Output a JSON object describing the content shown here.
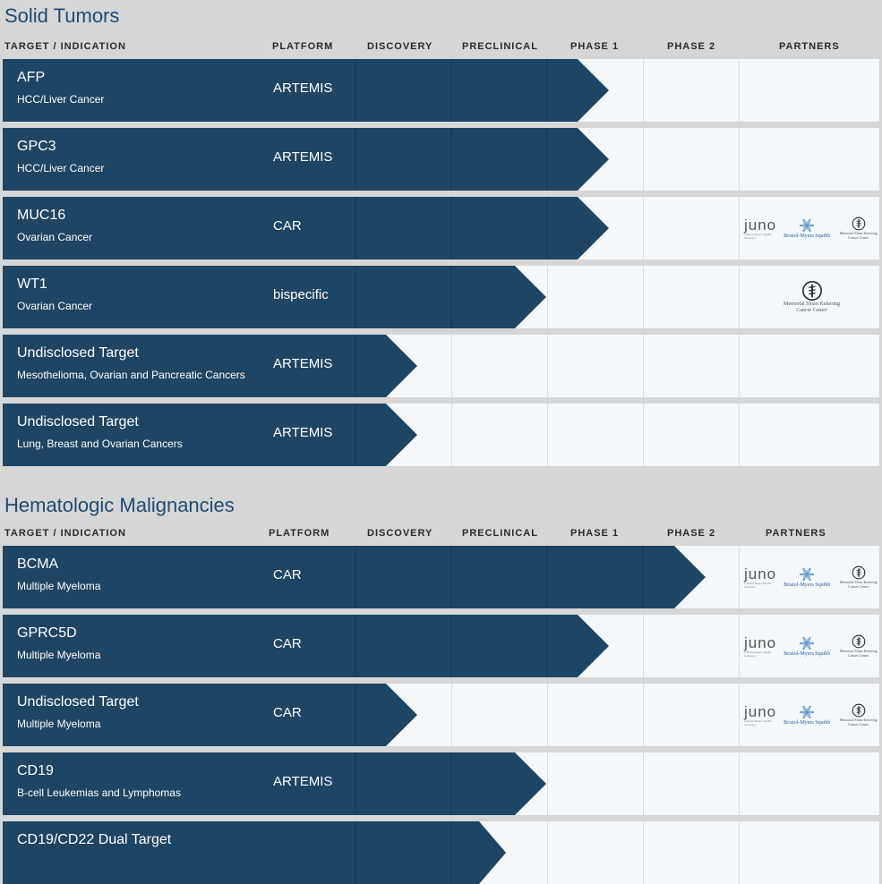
{
  "columns": [
    "TARGET / INDICATION",
    "PLATFORM",
    "DISCOVERY",
    "PRECLINICAL",
    "PHASE 1",
    "PHASE 2",
    "PARTNERS"
  ],
  "partners_text": {
    "juno_word": "juno",
    "juno_sub": "A Bristol Myers Squibb Company",
    "bms": "Bristol-Myers Squibb",
    "msk_small": "Memorial Sloan Kettering Cancer Center",
    "msk_line1": "Memorial Sloan Kettering",
    "msk_line2": "Cancer Center"
  },
  "sections": [
    {
      "title": "Solid Tumors",
      "rows": [
        {
          "target": "AFP",
          "indication": "HCC/Liver Cancer",
          "platform": "ARTEMIS",
          "stage": "phase1",
          "partners": "none"
        },
        {
          "target": "GPC3",
          "indication": "HCC/Liver Cancer",
          "platform": "ARTEMIS",
          "stage": "phase1",
          "partners": "none"
        },
        {
          "target": "MUC16",
          "indication": "Ovarian Cancer",
          "platform": "CAR",
          "stage": "phase1",
          "partners": "three"
        },
        {
          "target": "WT1",
          "indication": "Ovarian Cancer",
          "platform": "bispecific",
          "stage": "preclinical",
          "partners": "msk"
        },
        {
          "target": "Undisclosed Target",
          "indication": "Mesothelioma, Ovarian and Pancreatic Cancers",
          "platform": "ARTEMIS",
          "stage": "discovery",
          "partners": "none"
        },
        {
          "target": "Undisclosed Target",
          "indication": "Lung, Breast and Ovarian Cancers",
          "platform": "ARTEMIS",
          "stage": "discovery",
          "partners": "none"
        }
      ]
    },
    {
      "title": "Hematologic Malignancies",
      "rows": [
        {
          "target": "BCMA",
          "indication": "Multiple Myeloma",
          "platform": "CAR",
          "stage": "phase2",
          "partners": "three"
        },
        {
          "target": "GPRC5D",
          "indication": "Multiple Myeloma",
          "platform": "CAR",
          "stage": "phase1",
          "partners": "three"
        },
        {
          "target": "Undisclosed Target",
          "indication": "Multiple Myeloma",
          "platform": "CAR",
          "stage": "discovery",
          "partners": "three"
        },
        {
          "target": "CD19",
          "indication": "B-cell Leukemias and Lymphomas",
          "platform": "ARTEMIS",
          "stage": "preclinical",
          "partners": "none"
        },
        {
          "target": "CD19/CD22 Dual Target",
          "indication": "",
          "platform": "",
          "stage": "preclinical_partial",
          "partners": "none"
        }
      ]
    }
  ]
}
